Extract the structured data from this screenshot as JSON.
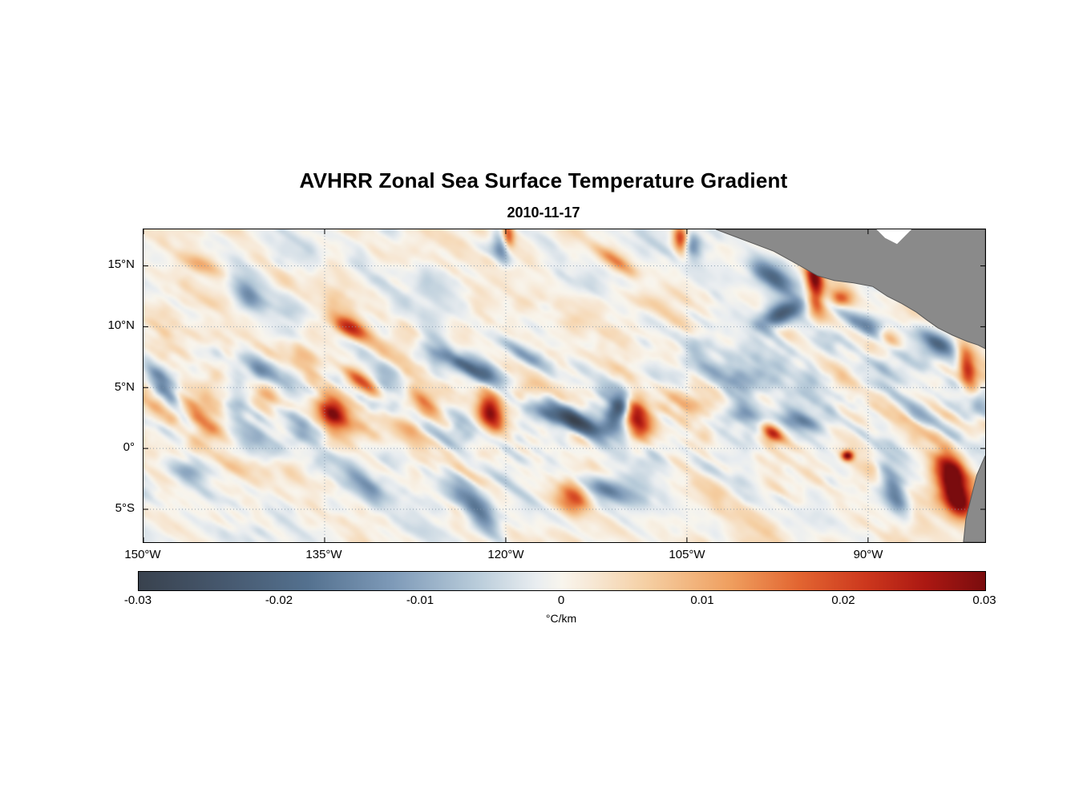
{
  "figure": {
    "title": "AVHRR Zonal Sea Surface Temperature Gradient",
    "date": "2010-11-17"
  },
  "chart_data": {
    "type": "heatmap",
    "title": "AVHRR Zonal Sea Surface Temperature Gradient",
    "subtitle": "2010-11-17",
    "variable": "zonal sea surface temperature gradient",
    "units": "°C/km",
    "grid": true,
    "x_axis": {
      "range": [
        -150,
        -80.3
      ],
      "tick_values": [
        -150,
        -135,
        -120,
        -105,
        -90
      ],
      "tick_labels": [
        "150°W",
        "135°W",
        "120°W",
        "105°W",
        "90°W"
      ]
    },
    "y_axis": {
      "range": [
        -7.7,
        18
      ],
      "tick_values": [
        15,
        10,
        5,
        0,
        -5
      ],
      "tick_labels": [
        "15°N",
        "10°N",
        "5°N",
        "0°",
        "5°S"
      ]
    },
    "colorbar": {
      "label": "°C/km",
      "range": [
        -0.03,
        0.03
      ],
      "tick_labels": [
        "-0.03",
        "-0.02",
        "-0.01",
        "0",
        "0.01",
        "0.02",
        "0.03"
      ],
      "colormap": [
        [
          0.0,
          "#39424e"
        ],
        [
          0.1,
          "#46586e"
        ],
        [
          0.2,
          "#54718f"
        ],
        [
          0.3,
          "#7e9ab8"
        ],
        [
          0.4,
          "#b9ccda"
        ],
        [
          0.47,
          "#e9edf0"
        ],
        [
          0.5,
          "#f8f5ed"
        ],
        [
          0.53,
          "#f7ead9"
        ],
        [
          0.6,
          "#f5cfa3"
        ],
        [
          0.7,
          "#ef9e5e"
        ],
        [
          0.78,
          "#e26531"
        ],
        [
          0.86,
          "#cc371d"
        ],
        [
          0.93,
          "#ab1812"
        ],
        [
          1.0,
          "#7a0c0e"
        ]
      ]
    },
    "land": {
      "color": "#8a8a8a",
      "edge": "#595959",
      "polygons": [
        {
          "name": "central-america",
          "water": false,
          "points": [
            [
              -102.6,
              18
            ],
            [
              -101.0,
              17.4
            ],
            [
              -99.4,
              16.8
            ],
            [
              -97.8,
              16.2
            ],
            [
              -95.8,
              15.1
            ],
            [
              -94.2,
              14.2
            ],
            [
              -92.8,
              13.8
            ],
            [
              -91.2,
              13.6
            ],
            [
              -89.6,
              13.3
            ],
            [
              -88.4,
              12.5
            ],
            [
              -87.2,
              11.9
            ],
            [
              -86.0,
              11.2
            ],
            [
              -85.2,
              10.6
            ],
            [
              -84.2,
              9.9
            ],
            [
              -83.0,
              9.3
            ],
            [
              -81.8,
              8.8
            ],
            [
              -80.9,
              8.5
            ],
            [
              -80.3,
              8.2
            ],
            [
              -80.3,
              18
            ]
          ]
        },
        {
          "name": "caribbean-notch",
          "water": true,
          "points": [
            [
              -89.3,
              18
            ],
            [
              -86.4,
              18
            ],
            [
              -87.6,
              16.8
            ],
            [
              -88.6,
              17.3
            ]
          ]
        },
        {
          "name": "south-america",
          "water": false,
          "points": [
            [
              -80.3,
              -0.6
            ],
            [
              -81.0,
              -2.2
            ],
            [
              -81.4,
              -3.8
            ],
            [
              -81.9,
              -5.8
            ],
            [
              -82.1,
              -7.7
            ],
            [
              -80.3,
              -7.7
            ]
          ]
        }
      ]
    },
    "background_noise": {
      "amplitude": 0.013,
      "streak_angle_deg": 35,
      "lat_band_center": 3.5,
      "lat_band_sigma": 5.5
    },
    "features": [
      [
        -148.2,
        4.8,
        -0.022,
        2.3,
        0.55,
        -55
      ],
      [
        -145.2,
        2.2,
        0.018,
        2.0,
        0.6,
        -35
      ],
      [
        -146.5,
        -1.8,
        -0.013,
        1.6,
        0.6,
        -15
      ],
      [
        -145.2,
        15.0,
        0.01,
        1.5,
        0.5,
        -20
      ],
      [
        -141.2,
        12.4,
        -0.013,
        1.3,
        0.6,
        -40
      ],
      [
        -139.9,
        6.1,
        -0.018,
        2.0,
        0.55,
        -40
      ],
      [
        -138.6,
        4.2,
        0.016,
        1.8,
        0.5,
        -45
      ],
      [
        -137.3,
        2.5,
        -0.02,
        1.8,
        0.55,
        -45
      ],
      [
        -134.3,
        2.9,
        0.026,
        1.1,
        0.8,
        -60
      ],
      [
        -132.9,
        9.8,
        0.024,
        1.2,
        0.55,
        -30
      ],
      [
        -131.9,
        5.5,
        0.014,
        1.4,
        0.5,
        -40
      ],
      [
        -131.6,
        -3.1,
        -0.012,
        1.4,
        0.6,
        -45
      ],
      [
        -127.0,
        4.2,
        0.016,
        1.6,
        0.55,
        -50
      ],
      [
        -123.3,
        6.8,
        -0.02,
        2.3,
        0.65,
        -25
      ],
      [
        -121.3,
        3.0,
        0.027,
        1.1,
        0.7,
        -75
      ],
      [
        -124.0,
        1.2,
        -0.012,
        1.5,
        0.6,
        -20
      ],
      [
        -120.3,
        16.4,
        -0.016,
        1.0,
        0.55,
        -75
      ],
      [
        -119.8,
        17.5,
        0.02,
        0.9,
        0.35,
        -85
      ],
      [
        -118.0,
        7.5,
        -0.014,
        1.3,
        0.55,
        -25
      ],
      [
        -122.3,
        -5.1,
        -0.016,
        1.9,
        0.6,
        -50
      ],
      [
        -114.7,
        2.5,
        -0.026,
        3.0,
        0.8,
        -18
      ],
      [
        -110.7,
        3.2,
        -0.022,
        0.9,
        0.6,
        60
      ],
      [
        -109.2,
        2.5,
        0.028,
        1.4,
        0.75,
        -80
      ],
      [
        -111.0,
        15.4,
        0.012,
        1.6,
        0.5,
        -35
      ],
      [
        -105.5,
        17.2,
        0.024,
        0.9,
        0.45,
        -85
      ],
      [
        -104.6,
        16.7,
        -0.014,
        0.7,
        0.5,
        -70
      ],
      [
        -114.4,
        -4.1,
        0.016,
        1.0,
        0.8,
        -60
      ],
      [
        -111.4,
        -3.4,
        -0.014,
        1.8,
        0.55,
        -20
      ],
      [
        -102.1,
        5.8,
        -0.012,
        1.5,
        0.55,
        -30
      ],
      [
        -100.1,
        2.9,
        -0.013,
        1.0,
        0.5,
        -30
      ],
      [
        -97.8,
        14.0,
        -0.024,
        1.7,
        0.6,
        -35
      ],
      [
        -97.1,
        11.1,
        -0.022,
        1.4,
        0.6,
        25
      ],
      [
        -94.4,
        13.7,
        0.03,
        1.7,
        0.5,
        -85
      ],
      [
        -92.3,
        12.3,
        0.016,
        0.6,
        0.5,
        0
      ],
      [
        -89.8,
        10.1,
        -0.016,
        1.4,
        0.6,
        -25
      ],
      [
        -88.3,
        9.1,
        0.014,
        0.8,
        0.5,
        -40
      ],
      [
        -97.8,
        1.2,
        0.02,
        0.7,
        0.5,
        -30
      ],
      [
        -95.4,
        2.2,
        -0.014,
        1.3,
        0.5,
        -15
      ],
      [
        -91.7,
        -0.6,
        0.03,
        0.35,
        0.3,
        0
      ],
      [
        -87.8,
        -3.4,
        -0.018,
        1.6,
        0.6,
        -65
      ],
      [
        -84.2,
        8.8,
        -0.018,
        1.3,
        0.6,
        -35
      ],
      [
        -83.2,
        -2.1,
        0.028,
        1.4,
        0.9,
        -70
      ],
      [
        -82.5,
        -4.4,
        0.026,
        1.2,
        0.8,
        -60
      ],
      [
        -81.8,
        6.5,
        0.024,
        1.3,
        0.5,
        -80
      ],
      [
        -81.8,
        12.4,
        0.02,
        1.0,
        0.5,
        -75
      ]
    ]
  }
}
